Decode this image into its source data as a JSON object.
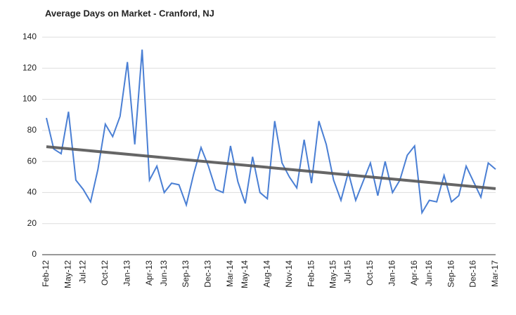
{
  "chart_data": {
    "type": "line",
    "title": "Average Days on Market - Cranford, NJ",
    "categories": [
      "Feb-12",
      null,
      null,
      "May-12",
      null,
      "Jul-12",
      null,
      null,
      "Oct-12",
      null,
      null,
      "Jan-13",
      null,
      null,
      "Apr-13",
      null,
      "Jun-13",
      null,
      null,
      "Sep-13",
      null,
      null,
      "Dec-13",
      null,
      null,
      "Mar-14",
      null,
      "May-14",
      null,
      null,
      "Aug-14",
      null,
      null,
      "Nov-14",
      null,
      null,
      "Feb-15",
      null,
      null,
      "May-15",
      null,
      "Jul-15",
      null,
      null,
      "Oct-15",
      null,
      null,
      "Jan-16",
      null,
      null,
      "Apr-16",
      null,
      "Jun-16",
      null,
      null,
      "Sep-16",
      null,
      null,
      "Dec-16",
      null,
      null,
      "Mar-17"
    ],
    "series": [
      {
        "name": "Average Days on Market",
        "color": "#4a7fd4",
        "values": [
          88,
          68,
          65,
          92,
          48,
          42,
          34,
          55,
          84,
          76,
          89,
          124,
          71,
          132,
          48,
          57,
          40,
          46,
          45,
          32,
          52,
          69,
          57,
          42,
          40,
          70,
          47,
          33,
          63,
          40,
          36,
          86,
          59,
          50,
          43,
          74,
          46,
          86,
          71,
          48,
          35,
          53,
          35,
          47,
          59,
          38,
          60,
          40,
          48,
          64,
          70,
          27,
          35,
          34,
          51,
          34,
          38,
          57,
          47,
          37,
          59,
          55
        ]
      }
    ],
    "trendline": {
      "start": 69.5,
      "end": 42.5,
      "color": "#555555"
    },
    "ylim": [
      0,
      140
    ],
    "yticks": [
      0,
      20,
      40,
      60,
      80,
      100,
      120,
      140
    ],
    "grid": true
  }
}
